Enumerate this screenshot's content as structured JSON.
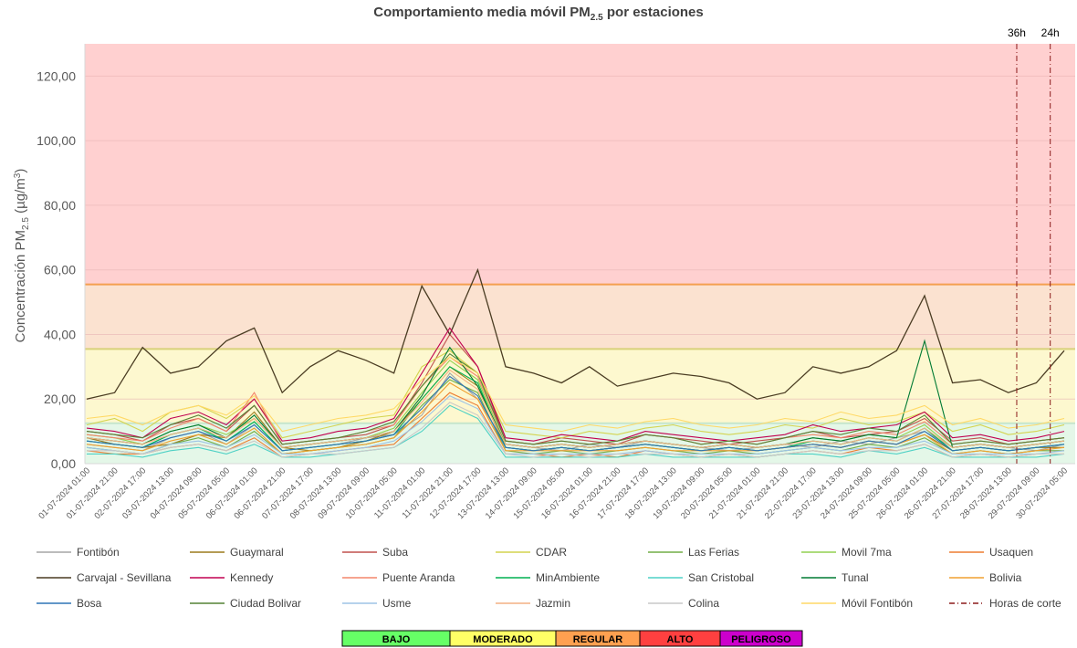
{
  "chart_data": {
    "type": "line",
    "title_main": "Comportamiento media móvil PM",
    "title_sub": "2.5",
    "title_end": " por estaciones",
    "ylabel_main": "Concentración PM",
    "ylabel_sub": "2.5",
    "ylabel_mid": " (µg/m",
    "ylabel_sup": "3",
    "ylabel_end": ")",
    "categories": [
      "01-07-2024 01:00",
      "01-07-2024 21:00",
      "02-07-2024 17:00",
      "03-07-2024 13:00",
      "04-07-2024 09:00",
      "05-07-2024 05:00",
      "06-07-2024 01:00",
      "06-07-2024 21:00",
      "07-07-2024 17:00",
      "08-07-2024 13:00",
      "09-07-2024 09:00",
      "10-07-2024 05:00",
      "11-07-2024 01:00",
      "11-07-2024 21:00",
      "12-07-2024 17:00",
      "13-07-2024 13:00",
      "14-07-2024 09:00",
      "15-07-2024 05:00",
      "16-07-2024 01:00",
      "16-07-2024 21:00",
      "17-07-2024 17:00",
      "18-07-2024 13:00",
      "19-07-2024 09:00",
      "20-07-2024 05:00",
      "21-07-2024 01:00",
      "21-07-2024 21:00",
      "22-07-2024 17:00",
      "23-07-2024 13:00",
      "24-07-2024 09:00",
      "25-07-2024 05:00",
      "26-07-2024 01:00",
      "26-07-2024 21:00",
      "27-07-2024 17:00",
      "28-07-2024 13:00",
      "29-07-2024 09:00",
      "30-07-2024 05:00"
    ],
    "series": [
      {
        "name": "Fontibón",
        "color": "#a6a6a6",
        "values": [
          6,
          5,
          4,
          8,
          10,
          6,
          12,
          4,
          5,
          6,
          8,
          9,
          15,
          28,
          20,
          6,
          5,
          4,
          6,
          5,
          7,
          6,
          5,
          4,
          5,
          6,
          5,
          7,
          6,
          8,
          10,
          5,
          6,
          5,
          4,
          6
        ]
      },
      {
        "name": "Guaymaral",
        "color": "#9c7a1c",
        "values": [
          8,
          6,
          5,
          6,
          9,
          8,
          16,
          5,
          4,
          5,
          7,
          10,
          20,
          30,
          24,
          5,
          4,
          5,
          4,
          5,
          6,
          5,
          4,
          5,
          4,
          5,
          6,
          5,
          7,
          6,
          9,
          4,
          5,
          4,
          5,
          5
        ]
      },
      {
        "name": "Suba",
        "color": "#c0504d",
        "values": [
          10,
          9,
          7,
          12,
          14,
          10,
          18,
          6,
          7,
          8,
          9,
          12,
          25,
          40,
          30,
          7,
          6,
          8,
          7,
          6,
          9,
          8,
          7,
          6,
          7,
          8,
          10,
          8,
          9,
          10,
          14,
          7,
          8,
          6,
          7,
          8
        ]
      },
      {
        "name": "CDAR",
        "color": "#d4d44f",
        "values": [
          12,
          14,
          10,
          16,
          18,
          14,
          20,
          8,
          10,
          12,
          14,
          15,
          30,
          35,
          28,
          10,
          9,
          8,
          10,
          9,
          11,
          12,
          10,
          9,
          10,
          12,
          11,
          14,
          12,
          13,
          16,
          10,
          12,
          9,
          10,
          12
        ]
      },
      {
        "name": "Las Ferias",
        "color": "#70ad47",
        "values": [
          5,
          4,
          3,
          6,
          8,
          5,
          10,
          3,
          4,
          5,
          6,
          8,
          18,
          26,
          22,
          4,
          3,
          4,
          3,
          4,
          5,
          4,
          3,
          4,
          3,
          4,
          5,
          4,
          6,
          5,
          8,
          3,
          4,
          3,
          4,
          4
        ]
      },
      {
        "name": "Movil 7ma",
        "color": "#92d050",
        "values": [
          9,
          8,
          6,
          10,
          12,
          9,
          14,
          5,
          6,
          7,
          8,
          11,
          22,
          32,
          26,
          6,
          5,
          6,
          5,
          6,
          7,
          6,
          5,
          6,
          5,
          6,
          8,
          7,
          9,
          8,
          12,
          5,
          6,
          5,
          6,
          7
        ]
      },
      {
        "name": "Usaquen",
        "color": "#ed7d31",
        "values": [
          4,
          3,
          3,
          5,
          6,
          4,
          8,
          2,
          3,
          4,
          5,
          6,
          14,
          22,
          18,
          3,
          3,
          2,
          3,
          2,
          4,
          3,
          2,
          3,
          2,
          3,
          4,
          3,
          5,
          4,
          6,
          2,
          3,
          2,
          3,
          3
        ]
      },
      {
        "name": "Carvajal - Sevillana",
        "color": "#4a3c22",
        "values": [
          20,
          22,
          36,
          28,
          30,
          38,
          42,
          22,
          30,
          35,
          32,
          28,
          55,
          40,
          60,
          30,
          28,
          25,
          30,
          24,
          26,
          28,
          27,
          25,
          20,
          22,
          30,
          28,
          30,
          35,
          52,
          25,
          26,
          22,
          25,
          35
        ]
      },
      {
        "name": "Kennedy",
        "color": "#c00050",
        "values": [
          11,
          10,
          8,
          14,
          16,
          12,
          20,
          7,
          8,
          10,
          11,
          14,
          28,
          42,
          30,
          8,
          7,
          9,
          8,
          7,
          10,
          9,
          8,
          7,
          8,
          9,
          12,
          10,
          11,
          12,
          16,
          8,
          9,
          7,
          8,
          10
        ]
      },
      {
        "name": "Puente Aranda",
        "color": "#f4856b",
        "values": [
          9,
          8,
          7,
          11,
          14,
          10,
          22,
          6,
          7,
          8,
          10,
          12,
          24,
          33,
          27,
          7,
          6,
          7,
          6,
          7,
          9,
          8,
          6,
          7,
          6,
          8,
          9,
          8,
          10,
          9,
          13,
          6,
          7,
          6,
          7,
          8
        ]
      },
      {
        "name": "MinAmbiente",
        "color": "#00b050",
        "values": [
          7,
          6,
          5,
          9,
          11,
          7,
          13,
          4,
          5,
          6,
          7,
          9,
          20,
          30,
          25,
          5,
          4,
          5,
          4,
          5,
          6,
          5,
          4,
          5,
          4,
          5,
          7,
          6,
          8,
          7,
          11,
          4,
          5,
          4,
          5,
          6
        ]
      },
      {
        "name": "San Cristobal",
        "color": "#4fd1c5",
        "values": [
          3,
          3,
          2,
          4,
          5,
          3,
          6,
          2,
          2,
          3,
          4,
          5,
          10,
          18,
          14,
          2,
          2,
          2,
          2,
          2,
          3,
          2,
          2,
          2,
          2,
          3,
          3,
          2,
          4,
          3,
          5,
          2,
          2,
          2,
          2,
          3
        ]
      },
      {
        "name": "Tunal",
        "color": "#007a33",
        "values": [
          8,
          7,
          6,
          10,
          12,
          8,
          15,
          5,
          6,
          7,
          8,
          10,
          21,
          36,
          24,
          6,
          5,
          6,
          5,
          6,
          7,
          6,
          5,
          6,
          5,
          6,
          8,
          7,
          9,
          8,
          38,
          5,
          6,
          5,
          6,
          7
        ]
      },
      {
        "name": "Bolivia",
        "color": "#f0a030",
        "values": [
          6,
          5,
          4,
          7,
          9,
          6,
          11,
          3,
          4,
          5,
          6,
          8,
          16,
          25,
          20,
          4,
          4,
          4,
          4,
          4,
          5,
          4,
          4,
          4,
          4,
          5,
          6,
          5,
          7,
          6,
          9,
          3,
          4,
          3,
          4,
          5
        ]
      },
      {
        "name": "Bosa",
        "color": "#2e75b6",
        "values": [
          7,
          6,
          5,
          8,
          10,
          7,
          12,
          4,
          5,
          6,
          7,
          9,
          17,
          27,
          21,
          5,
          4,
          5,
          4,
          5,
          6,
          5,
          4,
          5,
          4,
          5,
          6,
          5,
          7,
          6,
          10,
          4,
          5,
          4,
          5,
          6
        ]
      },
      {
        "name": "Ciudad Bolivar",
        "color": "#548235",
        "values": [
          10,
          9,
          8,
          12,
          15,
          11,
          18,
          6,
          7,
          8,
          10,
          13,
          24,
          34,
          28,
          7,
          6,
          7,
          6,
          7,
          9,
          8,
          6,
          7,
          6,
          8,
          10,
          9,
          11,
          10,
          15,
          6,
          7,
          6,
          7,
          8
        ]
      },
      {
        "name": "Usme",
        "color": "#9dc3e6",
        "values": [
          5,
          4,
          3,
          6,
          7,
          5,
          9,
          3,
          3,
          4,
          5,
          7,
          13,
          21,
          17,
          3,
          3,
          3,
          3,
          3,
          4,
          3,
          3,
          3,
          3,
          4,
          5,
          4,
          5,
          5,
          7,
          3,
          3,
          3,
          3,
          4
        ]
      },
      {
        "name": "Jazmin",
        "color": "#f4b183",
        "values": [
          8,
          7,
          6,
          9,
          11,
          8,
          14,
          5,
          6,
          7,
          8,
          10,
          19,
          29,
          23,
          6,
          5,
          6,
          5,
          6,
          7,
          6,
          5,
          6,
          5,
          6,
          7,
          6,
          8,
          7,
          11,
          5,
          6,
          5,
          6,
          7
        ]
      },
      {
        "name": "Colina",
        "color": "#c9c9c9",
        "values": [
          4,
          4,
          3,
          5,
          6,
          4,
          7,
          2,
          3,
          3,
          4,
          5,
          11,
          19,
          15,
          3,
          2,
          3,
          2,
          3,
          3,
          3,
          2,
          3,
          2,
          3,
          4,
          3,
          4,
          4,
          6,
          2,
          3,
          2,
          3,
          3
        ]
      },
      {
        "name": "Móvil Fontibón",
        "color": "#ffd966",
        "values": [
          14,
          15,
          12,
          16,
          18,
          15,
          21,
          10,
          12,
          14,
          15,
          17,
          26,
          33,
          28,
          12,
          11,
          10,
          12,
          11,
          13,
          14,
          12,
          11,
          12,
          14,
          13,
          16,
          14,
          15,
          18,
          12,
          14,
          11,
          12,
          14
        ]
      }
    ],
    "cutoffs": {
      "name": "Horas de corte",
      "color": "#8b1a1a",
      "lines": [
        {
          "label": "36h",
          "x": 33.3
        },
        {
          "label": "24h",
          "x": 34.5
        }
      ]
    },
    "bands": [
      {
        "label": "BAJO",
        "from": 0,
        "to": 12.5,
        "color": "#e4f7e8",
        "line": "#c6e6cc",
        "legend_color": "#66ff66"
      },
      {
        "label": "MODERADO",
        "from": 12.5,
        "to": 35.5,
        "color": "#fdf8cf",
        "line": "#d8d27a",
        "legend_color": "#ffff66"
      },
      {
        "label": "REGULAR",
        "from": 35.5,
        "to": 55.5,
        "color": "#fbe2d0",
        "line": "#f4a050",
        "legend_color": "#ffa050"
      },
      {
        "label": "ALTO",
        "from": 55.5,
        "to": 130,
        "color": "#ffd0d0",
        "line": "#f4a050",
        "legend_color": "#ff4040"
      },
      {
        "label": "PELIGROSO",
        "legend_color": "#cc00cc"
      }
    ],
    "ylim": [
      0,
      130
    ],
    "yticks": [
      {
        "value": 0,
        "label": "0,00"
      },
      {
        "value": 20,
        "label": "20,00"
      },
      {
        "value": 40,
        "label": "40,00"
      },
      {
        "value": 60,
        "label": "60,00"
      },
      {
        "value": 80,
        "label": "80,00"
      },
      {
        "value": 100,
        "label": "100,00"
      },
      {
        "value": 120,
        "label": "120,00"
      }
    ],
    "grid": true
  }
}
